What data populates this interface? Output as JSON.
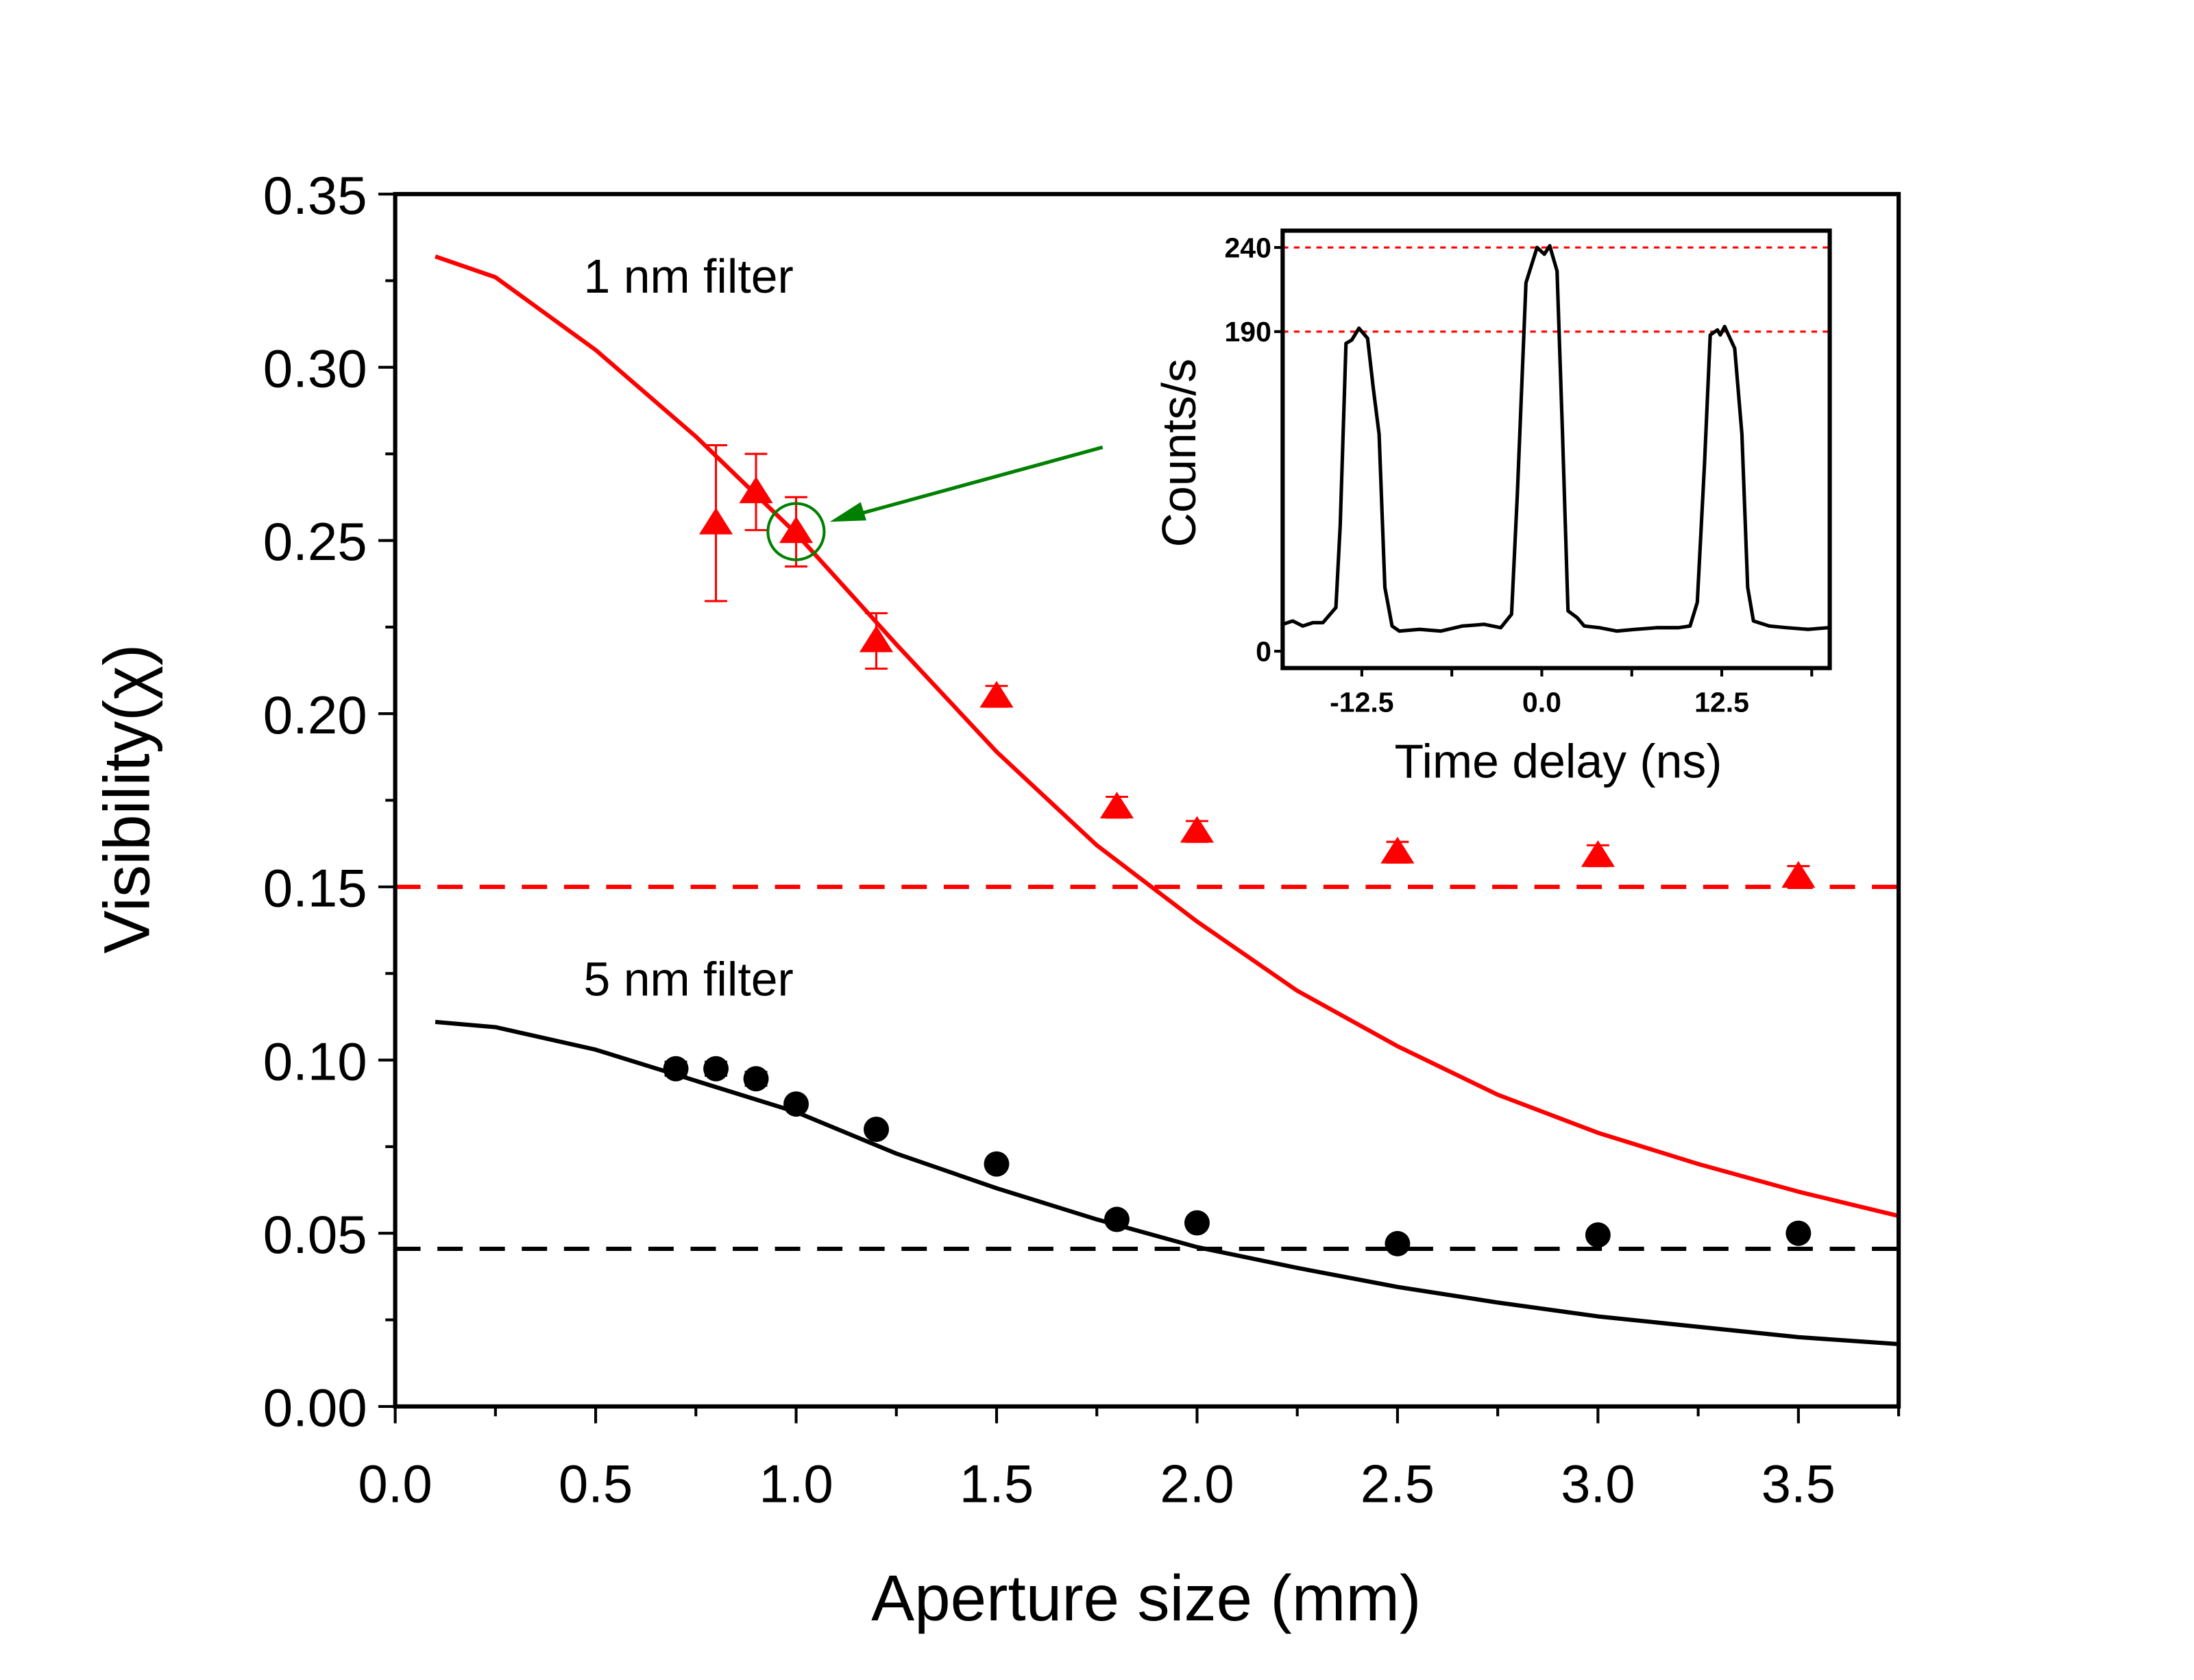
{
  "chart_data": [
    {
      "type": "scatter",
      "xlabel": "Aperture size (mm)",
      "ylabel": "Visibility(χ)",
      "xlim": [
        0.0,
        3.75
      ],
      "ylim": [
        0.0,
        0.35
      ],
      "xticks": [
        "0.0",
        "0.5",
        "1.0",
        "1.5",
        "2.0",
        "2.5",
        "3.0",
        "3.5"
      ],
      "yticks": [
        "0.00",
        "0.05",
        "0.10",
        "0.15",
        "0.20",
        "0.25",
        "0.30",
        "0.35"
      ],
      "grid": false,
      "colors": {
        "red": "#ff0000",
        "black": "#000000",
        "annotation": "#008000"
      },
      "annotations": [
        {
          "text": "1 nm filter",
          "x": 0.5,
          "y": 0.325
        },
        {
          "text": "5 nm filter",
          "x": 0.5,
          "y": 0.122
        },
        {
          "type": "circle-arrow",
          "x": 1.0,
          "y": 0.2525,
          "color": "#008000"
        }
      ],
      "series": [
        {
          "marker": "triangle",
          "color": "#ff0000",
          "x": [
            0.8,
            0.9,
            1.0,
            1.2,
            1.5,
            1.8,
            2.0,
            2.5,
            3.0,
            3.5
          ],
          "y": [
            0.255,
            0.264,
            0.2525,
            0.221,
            0.205,
            0.173,
            0.166,
            0.16,
            0.159,
            0.153
          ],
          "yerr": [
            0.0225,
            0.011,
            0.01,
            0.008,
            0.003,
            0.003,
            0.003,
            0.003,
            0.003,
            0.003
          ]
        },
        {
          "marker": "circle",
          "color": "#000000",
          "x": [
            0.7,
            0.8,
            0.9,
            1.0,
            1.2,
            1.5,
            1.8,
            2.0,
            2.5,
            3.0,
            3.5
          ],
          "y": [
            0.0975,
            0.0975,
            0.0946,
            0.0873,
            0.08,
            0.07,
            0.054,
            0.053,
            0.047,
            0.0495,
            0.05
          ],
          "yerr": [
            0.002,
            0.002,
            0.002,
            0.001,
            0.001,
            0.001,
            0.001,
            0.001,
            0.001,
            0.001,
            0.001
          ]
        },
        {
          "type": "line",
          "color": "#ff0000",
          "x": [
            0.1,
            0.25,
            0.5,
            0.75,
            1.0,
            1.25,
            1.5,
            1.75,
            2.0,
            2.25,
            2.5,
            2.75,
            3.0,
            3.25,
            3.5,
            3.75
          ],
          "y": [
            0.332,
            0.326,
            0.305,
            0.28,
            0.252,
            0.22,
            0.189,
            0.162,
            0.14,
            0.12,
            0.104,
            0.09,
            0.079,
            0.07,
            0.062,
            0.055
          ]
        },
        {
          "type": "line",
          "color": "#000000",
          "x": [
            0.1,
            0.25,
            0.5,
            0.75,
            1.0,
            1.25,
            1.5,
            1.75,
            2.0,
            2.25,
            2.5,
            2.75,
            3.0,
            3.25,
            3.5,
            3.75
          ],
          "y": [
            0.111,
            0.1095,
            0.103,
            0.094,
            0.085,
            0.073,
            0.063,
            0.054,
            0.046,
            0.04,
            0.0345,
            0.03,
            0.026,
            0.023,
            0.02,
            0.018
          ]
        },
        {
          "type": "hline",
          "style": "dashed",
          "color": "#ff0000",
          "y": 0.15
        },
        {
          "type": "hline",
          "style": "dashed",
          "color": "#000000",
          "y": 0.0455
        }
      ]
    },
    {
      "type": "line",
      "inset": true,
      "xlabel": "Time delay (ns)",
      "ylabel": "Counts/s",
      "xlim": [
        -18,
        20
      ],
      "ylim": [
        -10,
        250
      ],
      "xticks": [
        "-12.5",
        "0.0",
        "12.5"
      ],
      "xtick_values": [
        -12.5,
        0.0,
        12.5
      ],
      "yticks": [
        "0",
        "190",
        "240"
      ],
      "ytick_values": [
        0,
        190,
        240
      ],
      "reference_lines": [
        {
          "y": 240,
          "style": "dotted",
          "color": "#ff0000"
        },
        {
          "y": 190,
          "style": "dotted",
          "color": "#ff0000"
        }
      ],
      "series": [
        {
          "color": "#000000",
          "x": [
            -18.0,
            -17.3,
            -16.6,
            -15.9,
            -15.2,
            -14.3,
            -14.0,
            -13.6,
            -13.2,
            -12.7,
            -12.1,
            -11.7,
            -11.3,
            -10.9,
            -10.4,
            -9.9,
            -8.5,
            -7,
            -5.5,
            -4,
            -2.85,
            -2.1,
            -1.7,
            -1.1,
            -0.33,
            0.18,
            0.55,
            1.06,
            1.44,
            1.82,
            2.45,
            2.95,
            4,
            5.2,
            6.5,
            8,
            9.5,
            10.3,
            10.8,
            11.3,
            11.7,
            12.2,
            12.4,
            12.7,
            13.4,
            13.9,
            14.3,
            14.7,
            15.8,
            17,
            18.5,
            19.9
          ],
          "y": [
            16,
            18,
            15,
            17,
            17,
            26,
            75,
            183,
            185,
            192,
            186,
            156,
            129,
            38,
            15,
            12,
            13,
            12,
            15,
            16,
            14,
            22,
            93,
            219,
            240,
            236,
            241,
            226,
            129,
            24,
            20,
            15,
            14,
            12,
            13,
            14,
            14,
            15,
            29,
            111,
            188,
            191,
            188,
            193,
            180,
            129,
            38,
            18,
            15,
            14,
            13,
            14
          ]
        }
      ]
    }
  ]
}
